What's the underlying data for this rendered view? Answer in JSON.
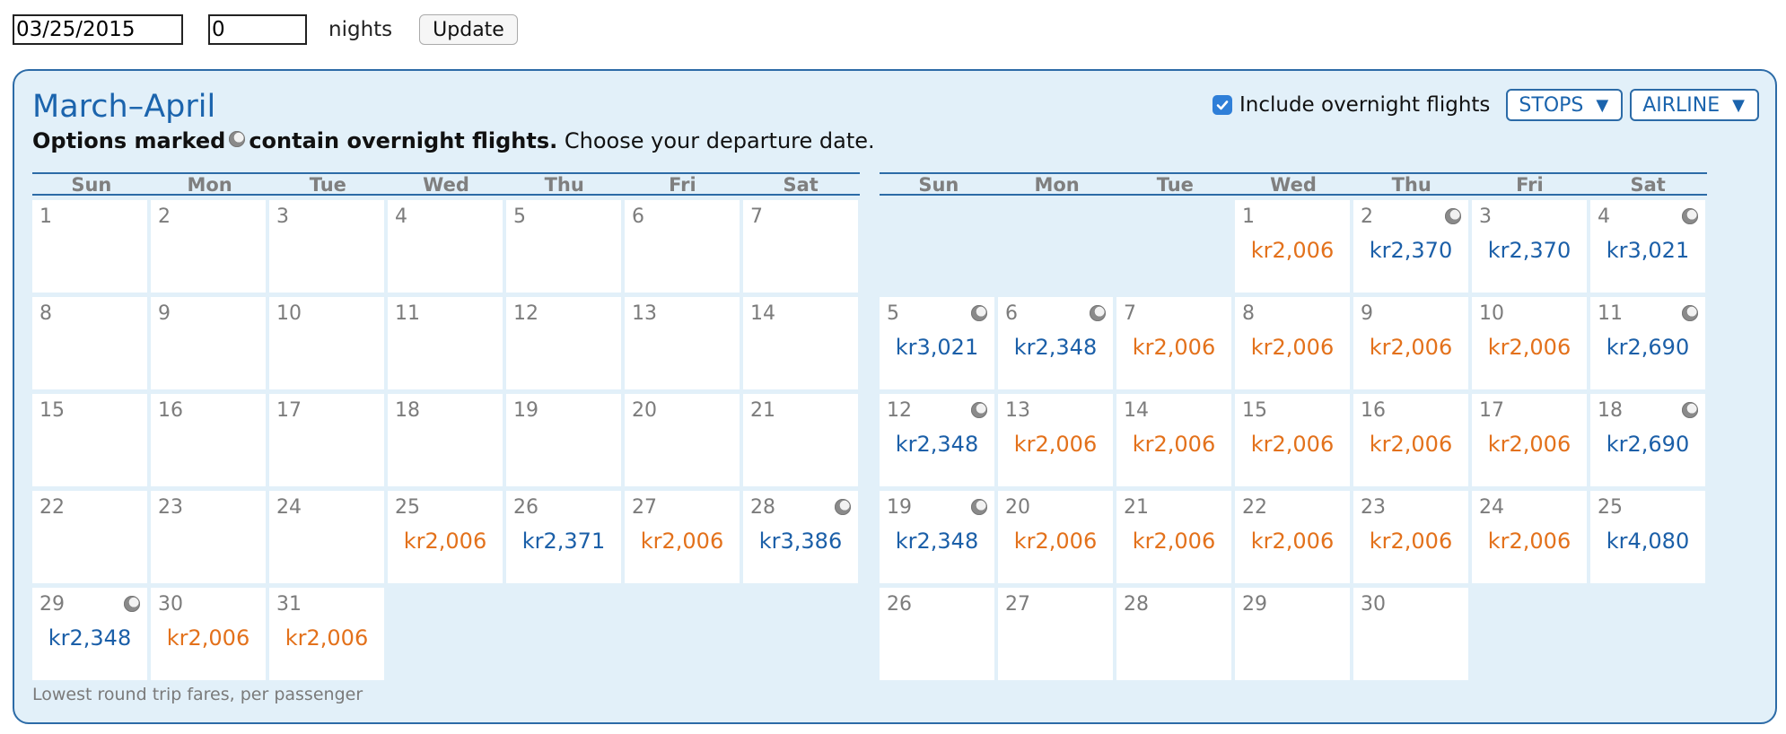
{
  "search": {
    "date_value": "03/25/2015",
    "nights_value": "0",
    "nights_label": "nights",
    "update_label": "Update"
  },
  "calendar": {
    "title": "March–April",
    "subtitle_bold_1": "Options marked",
    "subtitle_bold_2": "contain overnight flights.",
    "subtitle_rest": "Choose your departure date.",
    "overnight_checkbox_label": "Include overnight flights",
    "overnight_checked": true,
    "stops_label": "STOPS",
    "airline_label": "AIRLINE",
    "footnote": "Lowest round trip fares, per passenger",
    "weekdays": [
      "Sun",
      "Mon",
      "Tue",
      "Wed",
      "Thu",
      "Fri",
      "Sat"
    ],
    "colors": {
      "cheap_fare": "#e3711b",
      "normal_fare": "#1b5fa8",
      "accent": "#2c6ba7",
      "panel_bg": "#e2f0f9"
    },
    "months": [
      {
        "name": "March",
        "lead_blank": 0,
        "days": [
          {
            "d": "1"
          },
          {
            "d": "2"
          },
          {
            "d": "3"
          },
          {
            "d": "4"
          },
          {
            "d": "5"
          },
          {
            "d": "6"
          },
          {
            "d": "7"
          },
          {
            "d": "8"
          },
          {
            "d": "9"
          },
          {
            "d": "10"
          },
          {
            "d": "11"
          },
          {
            "d": "12"
          },
          {
            "d": "13"
          },
          {
            "d": "14"
          },
          {
            "d": "15"
          },
          {
            "d": "16"
          },
          {
            "d": "17"
          },
          {
            "d": "18"
          },
          {
            "d": "19"
          },
          {
            "d": "20"
          },
          {
            "d": "21"
          },
          {
            "d": "22"
          },
          {
            "d": "23"
          },
          {
            "d": "24"
          },
          {
            "d": "25",
            "fare": "kr2,006",
            "cheap": true
          },
          {
            "d": "26",
            "fare": "kr2,371"
          },
          {
            "d": "27",
            "fare": "kr2,006",
            "cheap": true
          },
          {
            "d": "28",
            "fare": "kr3,386",
            "overnight": true
          },
          {
            "d": "29",
            "fare": "kr2,348",
            "overnight": true
          },
          {
            "d": "30",
            "fare": "kr2,006",
            "cheap": true
          },
          {
            "d": "31",
            "fare": "kr2,006",
            "cheap": true
          }
        ]
      },
      {
        "name": "April",
        "lead_blank": 3,
        "days": [
          {
            "d": "1",
            "fare": "kr2,006",
            "cheap": true
          },
          {
            "d": "2",
            "fare": "kr2,370",
            "overnight": true
          },
          {
            "d": "3",
            "fare": "kr2,370"
          },
          {
            "d": "4",
            "fare": "kr3,021",
            "overnight": true
          },
          {
            "d": "5",
            "fare": "kr3,021",
            "overnight": true
          },
          {
            "d": "6",
            "fare": "kr2,348",
            "overnight": true
          },
          {
            "d": "7",
            "fare": "kr2,006",
            "cheap": true
          },
          {
            "d": "8",
            "fare": "kr2,006",
            "cheap": true
          },
          {
            "d": "9",
            "fare": "kr2,006",
            "cheap": true
          },
          {
            "d": "10",
            "fare": "kr2,006",
            "cheap": true
          },
          {
            "d": "11",
            "fare": "kr2,690",
            "overnight": true
          },
          {
            "d": "12",
            "fare": "kr2,348",
            "overnight": true
          },
          {
            "d": "13",
            "fare": "kr2,006",
            "cheap": true
          },
          {
            "d": "14",
            "fare": "kr2,006",
            "cheap": true
          },
          {
            "d": "15",
            "fare": "kr2,006",
            "cheap": true
          },
          {
            "d": "16",
            "fare": "kr2,006",
            "cheap": true
          },
          {
            "d": "17",
            "fare": "kr2,006",
            "cheap": true
          },
          {
            "d": "18",
            "fare": "kr2,690",
            "overnight": true
          },
          {
            "d": "19",
            "fare": "kr2,348",
            "overnight": true
          },
          {
            "d": "20",
            "fare": "kr2,006",
            "cheap": true
          },
          {
            "d": "21",
            "fare": "kr2,006",
            "cheap": true
          },
          {
            "d": "22",
            "fare": "kr2,006",
            "cheap": true
          },
          {
            "d": "23",
            "fare": "kr2,006",
            "cheap": true
          },
          {
            "d": "24",
            "fare": "kr2,006",
            "cheap": true
          },
          {
            "d": "25",
            "fare": "kr4,080"
          },
          {
            "d": "26"
          },
          {
            "d": "27"
          },
          {
            "d": "28"
          },
          {
            "d": "29"
          },
          {
            "d": "30"
          }
        ]
      }
    ]
  }
}
